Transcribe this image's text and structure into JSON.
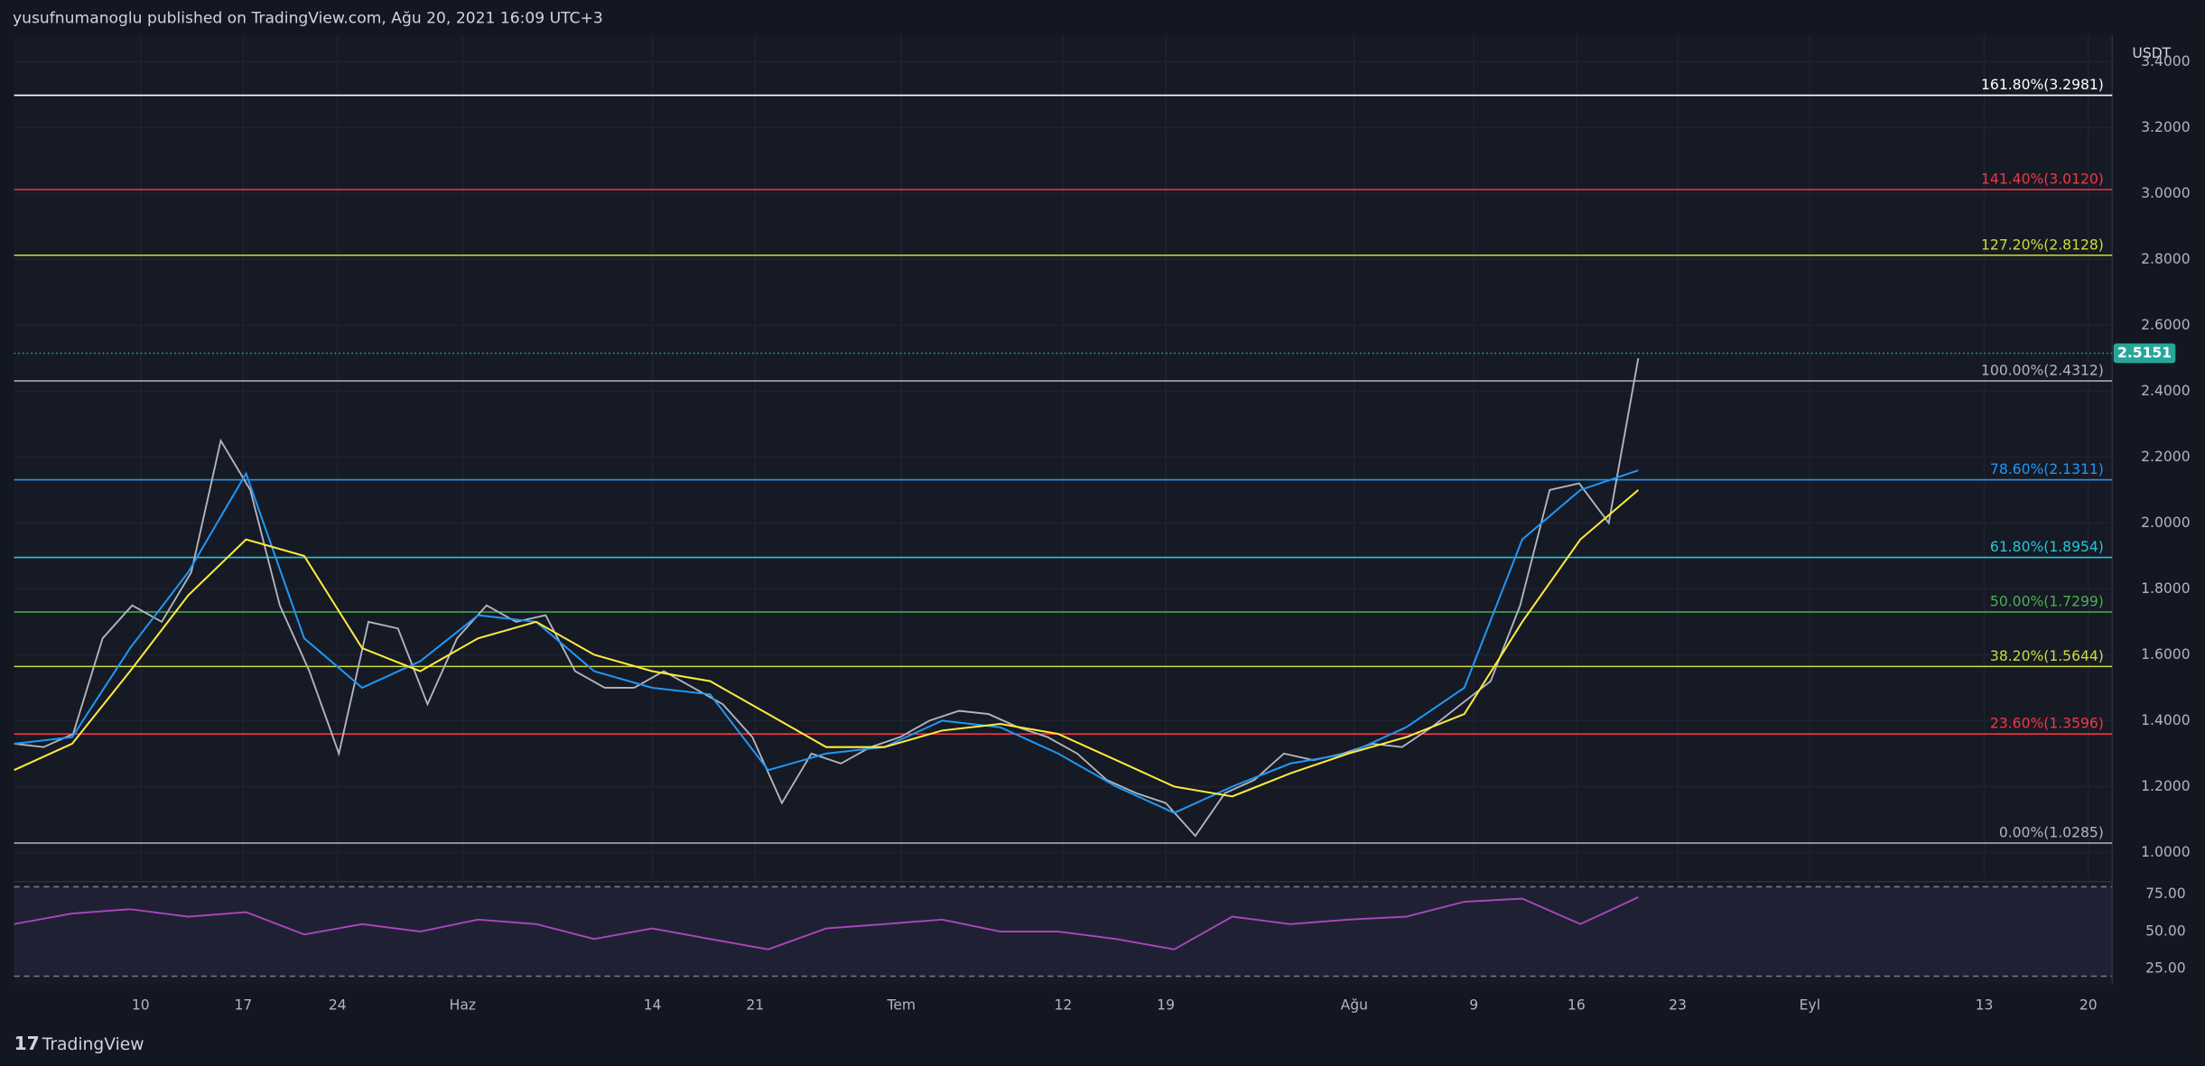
{
  "header": "yusufnumanoglu published on TradingView.com, Ağu 20, 2021 16:09 UTC+3",
  "footer": "TradingView",
  "chart_data": [
    {
      "type": "line",
      "currency": "USDT",
      "ylim": [
        0.92,
        3.48
      ],
      "yticks": [
        {
          "value": 1,
          "label": "1.0000"
        },
        {
          "value": 1.2,
          "label": "1.2000"
        },
        {
          "value": 1.4,
          "label": "1.4000"
        },
        {
          "value": 1.6,
          "label": "1.6000"
        },
        {
          "value": 1.8,
          "label": "1.8000"
        },
        {
          "value": 2,
          "label": "2.0000"
        },
        {
          "value": 2.2,
          "label": "2.2000"
        },
        {
          "value": 2.4,
          "label": "2.4000"
        },
        {
          "value": 2.6,
          "label": "2.6000"
        },
        {
          "value": 2.8,
          "label": "2.8000"
        },
        {
          "value": 3,
          "label": "3.0000"
        },
        {
          "value": 3.2,
          "label": "3.2000"
        },
        {
          "value": 3.4,
          "label": "3.4000"
        }
      ],
      "xticks": [
        "10",
        "17",
        "24",
        "Haz",
        "14",
        "21",
        "Tem",
        "12",
        "19",
        "Ağu",
        "9",
        "16",
        "23",
        "Eyl",
        "13",
        "20"
      ],
      "grid": true,
      "last_price": 2.5151,
      "last_price_color": "#26a69a",
      "series": [
        {
          "color": "#b2b5be",
          "values": [
            1.33,
            1.32,
            1.36,
            1.65,
            1.75,
            1.7,
            1.85,
            2.25,
            2.1,
            1.75,
            1.55,
            1.3,
            1.7,
            1.68,
            1.45,
            1.65,
            1.75,
            1.7,
            1.72,
            1.55,
            1.5,
            1.5,
            1.55,
            1.5,
            1.45,
            1.35,
            1.15,
            1.3,
            1.27,
            1.32,
            1.35,
            1.4,
            1.43,
            1.42,
            1.38,
            1.35,
            1.3,
            1.22,
            1.18,
            1.15,
            1.05,
            1.18,
            1.22,
            1.3,
            1.28,
            1.3,
            1.33,
            1.32,
            1.38,
            1.45,
            1.52,
            1.75,
            2.1,
            2.12,
            2.0,
            2.5
          ]
        },
        {
          "color": "#2196f3",
          "values": [
            1.33,
            1.35,
            1.62,
            1.85,
            2.15,
            1.65,
            1.5,
            1.58,
            1.72,
            1.7,
            1.55,
            1.5,
            1.48,
            1.25,
            1.3,
            1.32,
            1.4,
            1.38,
            1.3,
            1.2,
            1.12,
            1.2,
            1.27,
            1.3,
            1.38,
            1.5,
            1.95,
            2.1,
            2.16
          ]
        },
        {
          "color": "#ffeb3b",
          "values": [
            1.25,
            1.33,
            1.55,
            1.78,
            1.95,
            1.9,
            1.62,
            1.55,
            1.65,
            1.7,
            1.6,
            1.55,
            1.52,
            1.42,
            1.32,
            1.32,
            1.37,
            1.39,
            1.36,
            1.28,
            1.2,
            1.17,
            1.24,
            1.3,
            1.35,
            1.42,
            1.7,
            1.95,
            2.1
          ]
        }
      ],
      "levels": [
        {
          "label": "161.80%(3.2981)",
          "value": 3.2981,
          "color": "#ffffff"
        },
        {
          "label": "141.40%(3.0120)",
          "value": 3.012,
          "color": "#f23645"
        },
        {
          "label": "127.20%(2.8128)",
          "value": 2.8128,
          "color": "#cddc39"
        },
        {
          "label": "100.00%(2.4312)",
          "value": 2.4312,
          "color": "#b2b5be"
        },
        {
          "label": "78.60%(2.1311)",
          "value": 2.1311,
          "color": "#2196f3"
        },
        {
          "label": "61.80%(1.8954)",
          "value": 1.8954,
          "color": "#26c6da"
        },
        {
          "label": "50.00%(1.7299)",
          "value": 1.7299,
          "color": "#4caf50"
        },
        {
          "label": "38.20%(1.5644)",
          "value": 1.5644,
          "color": "#cddc39"
        },
        {
          "label": "23.60%(1.3596)",
          "value": 1.3596,
          "color": "#f23645"
        },
        {
          "label": "0.00%(1.0285)",
          "value": 1.0285,
          "color": "#b2b5be"
        }
      ]
    },
    {
      "type": "line",
      "ylim": [
        14.6,
        82.5
      ],
      "yticks": [
        {
          "value": 25,
          "label": "25.00"
        },
        {
          "value": 50,
          "label": "50.00"
        },
        {
          "value": 75,
          "label": "75.00"
        }
      ],
      "bands": [
        20,
        80
      ],
      "series": [
        {
          "color": "#ab47bc",
          "values": [
            55,
            62,
            65,
            60,
            63,
            48,
            55,
            50,
            58,
            55,
            45,
            52,
            45,
            38,
            52,
            55,
            58,
            50,
            50,
            45,
            38,
            60,
            55,
            58,
            60,
            70,
            72,
            55,
            73
          ]
        }
      ]
    }
  ]
}
